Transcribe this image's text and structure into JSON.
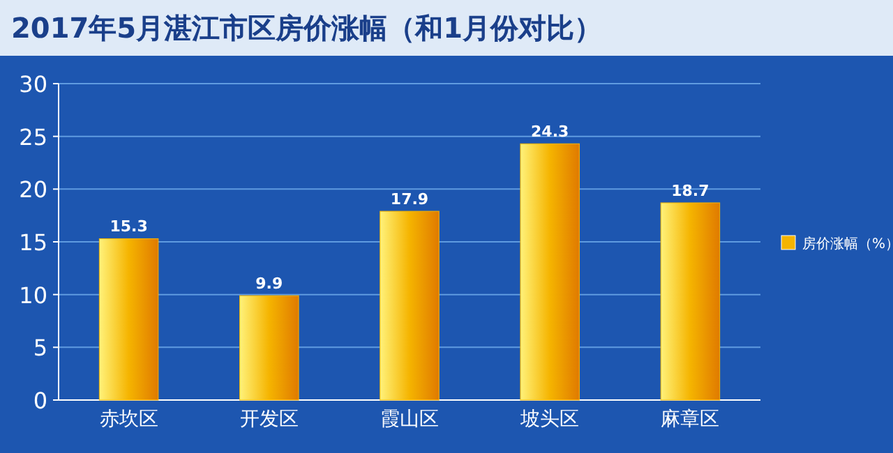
{
  "chart_data": {
    "type": "bar",
    "title": "2017年5月湛江市区房价涨幅（和1月份对比）",
    "categories": [
      "赤坎区",
      "开发区",
      "霞山区",
      "坡头区",
      "麻章区"
    ],
    "series": [
      {
        "name": "房价涨幅（%）",
        "color": "#f5b400",
        "values": [
          15.3,
          9.9,
          17.9,
          24.3,
          18.7
        ]
      }
    ],
    "ylim": [
      0,
      30
    ],
    "yticks": [
      0,
      5,
      10,
      15,
      20,
      25,
      30
    ],
    "grid": "y",
    "legend": "right",
    "data_labels": true
  }
}
